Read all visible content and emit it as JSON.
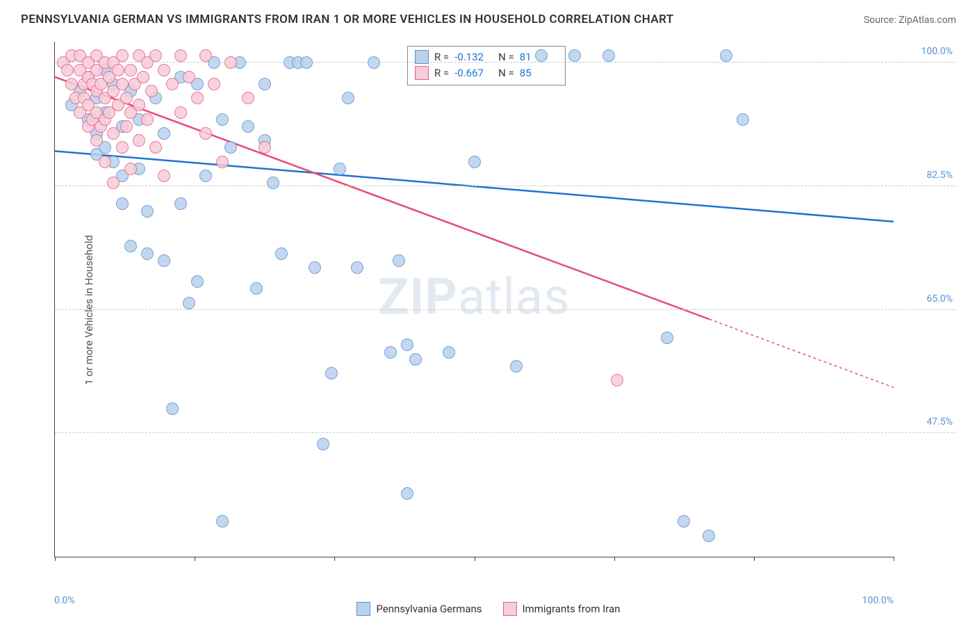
{
  "title": "PENNSYLVANIA GERMAN VS IMMIGRANTS FROM IRAN 1 OR MORE VEHICLES IN HOUSEHOLD CORRELATION CHART",
  "source": "Source: ZipAtlas.com",
  "watermark_a": "ZIP",
  "watermark_b": "atlas",
  "axes": {
    "ylabel": "1 or more Vehicles in Household",
    "xlim": [
      0,
      100
    ],
    "ylim": [
      30,
      103
    ],
    "xticks": [
      0,
      16.67,
      33.33,
      50,
      66.67,
      83.33,
      100
    ],
    "xtick_labels_shown": {
      "0": "0.0%",
      "100": "100.0%"
    },
    "yticks": [
      47.5,
      65.0,
      82.5,
      100.0
    ],
    "ytick_labels": [
      "47.5%",
      "65.0%",
      "82.5%",
      "100.0%"
    ],
    "grid_color": "#c9c9c9",
    "axis_color": "#444444",
    "tick_label_color": "#5b8fd6"
  },
  "series": [
    {
      "name": "Pennsylvania Germans",
      "marker_fill": "#b9d2ec",
      "marker_stroke": "#5b8fd6",
      "line_color": "#1e73d0",
      "marker_radius": 9,
      "R": "-0.132",
      "N": "81",
      "trend": {
        "x1": 0,
        "y1": 87.5,
        "x2": 100,
        "y2": 77.5,
        "solid_until_x": 100
      },
      "points": [
        [
          2,
          94
        ],
        [
          3,
          96
        ],
        [
          4,
          92
        ],
        [
          4,
          98
        ],
        [
          5,
          90
        ],
        [
          5,
          95
        ],
        [
          5,
          87
        ],
        [
          6,
          99
        ],
        [
          6,
          88
        ],
        [
          6,
          93
        ],
        [
          7,
          86
        ],
        [
          7,
          97
        ],
        [
          8,
          91
        ],
        [
          8,
          84
        ],
        [
          8,
          80
        ],
        [
          9,
          96
        ],
        [
          9,
          74
        ],
        [
          10,
          85
        ],
        [
          10,
          92
        ],
        [
          11,
          73
        ],
        [
          11,
          79
        ],
        [
          12,
          95
        ],
        [
          13,
          72
        ],
        [
          13,
          90
        ],
        [
          14,
          51
        ],
        [
          15,
          98
        ],
        [
          15,
          80
        ],
        [
          16,
          66
        ],
        [
          17,
          97
        ],
        [
          17,
          69
        ],
        [
          18,
          84
        ],
        [
          19,
          100
        ],
        [
          20,
          92
        ],
        [
          20,
          35
        ],
        [
          21,
          88
        ],
        [
          22,
          100
        ],
        [
          23,
          91
        ],
        [
          24,
          68
        ],
        [
          25,
          89
        ],
        [
          25,
          97
        ],
        [
          26,
          83
        ],
        [
          27,
          73
        ],
        [
          28,
          100
        ],
        [
          29,
          100
        ],
        [
          30,
          100
        ],
        [
          31,
          71
        ],
        [
          32,
          46
        ],
        [
          33,
          56
        ],
        [
          34,
          85
        ],
        [
          35,
          95
        ],
        [
          36,
          71
        ],
        [
          38,
          100
        ],
        [
          40,
          59
        ],
        [
          41,
          72
        ],
        [
          42,
          60
        ],
        [
          42,
          39
        ],
        [
          43,
          58
        ],
        [
          47,
          59
        ],
        [
          50,
          86
        ],
        [
          55,
          57
        ],
        [
          58,
          101
        ],
        [
          62,
          101
        ],
        [
          66,
          101
        ],
        [
          73,
          61
        ],
        [
          75,
          35
        ],
        [
          78,
          33
        ],
        [
          80,
          101
        ],
        [
          82,
          92
        ]
      ]
    },
    {
      "name": "Immigrants from Iran",
      "marker_fill": "#f6cdd8",
      "marker_stroke": "#ea5e86",
      "line_color": "#e84c78",
      "marker_radius": 9,
      "R": "-0.667",
      "N": "85",
      "trend": {
        "x1": 0,
        "y1": 98,
        "x2": 100,
        "y2": 54,
        "solid_until_x": 78
      },
      "points": [
        [
          1,
          100
        ],
        [
          1.5,
          99
        ],
        [
          2,
          101
        ],
        [
          2,
          97
        ],
        [
          2.5,
          95
        ],
        [
          3,
          101
        ],
        [
          3,
          99
        ],
        [
          3,
          93
        ],
        [
          3.5,
          97
        ],
        [
          3.5,
          95
        ],
        [
          4,
          100
        ],
        [
          4,
          98
        ],
        [
          4,
          94
        ],
        [
          4,
          91
        ],
        [
          4.5,
          97
        ],
        [
          4.5,
          92
        ],
        [
          5,
          101
        ],
        [
          5,
          99
        ],
        [
          5,
          96
        ],
        [
          5,
          93
        ],
        [
          5,
          89
        ],
        [
          5.5,
          97
        ],
        [
          5.5,
          91
        ],
        [
          6,
          100
        ],
        [
          6,
          95
        ],
        [
          6,
          92
        ],
        [
          6,
          86
        ],
        [
          6.5,
          98
        ],
        [
          6.5,
          93
        ],
        [
          7,
          100
        ],
        [
          7,
          96
        ],
        [
          7,
          90
        ],
        [
          7,
          83
        ],
        [
          7.5,
          99
        ],
        [
          7.5,
          94
        ],
        [
          8,
          101
        ],
        [
          8,
          97
        ],
        [
          8,
          88
        ],
        [
          8.5,
          95
        ],
        [
          8.5,
          91
        ],
        [
          9,
          99
        ],
        [
          9,
          93
        ],
        [
          9,
          85
        ],
        [
          9.5,
          97
        ],
        [
          10,
          101
        ],
        [
          10,
          94
        ],
        [
          10,
          89
        ],
        [
          10.5,
          98
        ],
        [
          11,
          100
        ],
        [
          11,
          92
        ],
        [
          11.5,
          96
        ],
        [
          12,
          101
        ],
        [
          12,
          88
        ],
        [
          13,
          99
        ],
        [
          13,
          84
        ],
        [
          14,
          97
        ],
        [
          15,
          101
        ],
        [
          15,
          93
        ],
        [
          16,
          98
        ],
        [
          17,
          95
        ],
        [
          18,
          101
        ],
        [
          18,
          90
        ],
        [
          19,
          97
        ],
        [
          20,
          86
        ],
        [
          21,
          100
        ],
        [
          23,
          95
        ],
        [
          25,
          88
        ],
        [
          67,
          55
        ]
      ]
    }
  ],
  "legend": {
    "items": [
      "Pennsylvania Germans",
      "Immigrants from Iran"
    ]
  },
  "stats_labels": {
    "R": "R =",
    "N": "N ="
  },
  "background_color": "#ffffff"
}
